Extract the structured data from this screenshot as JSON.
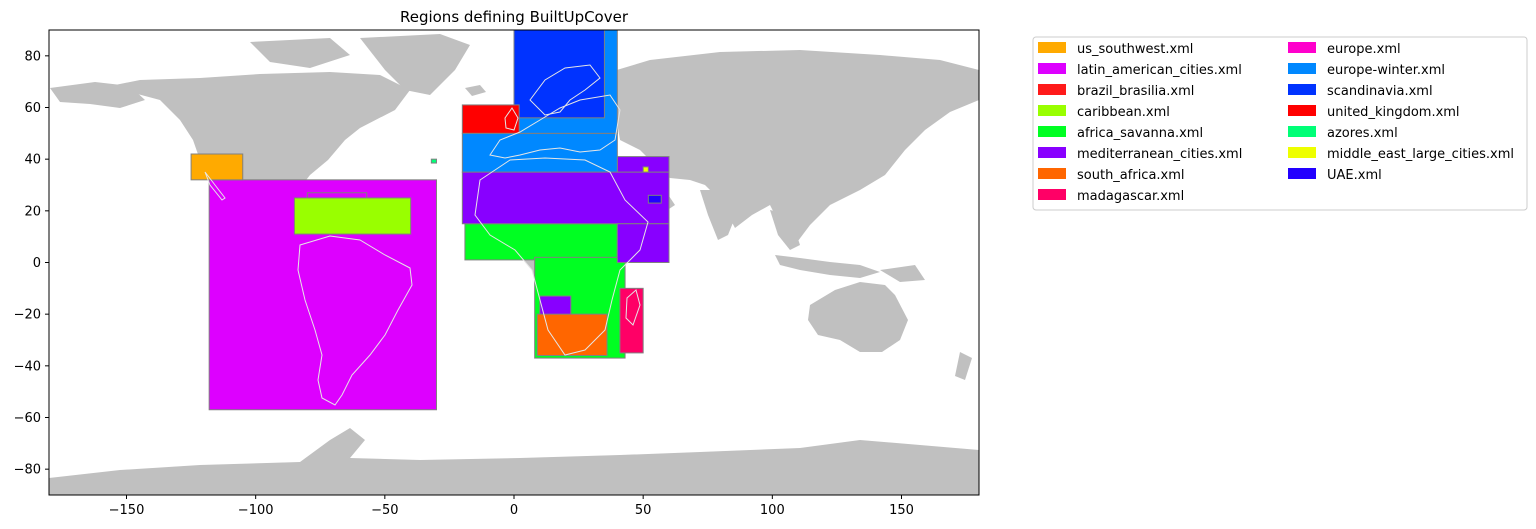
{
  "title": "Regions defining BuiltUpCover",
  "map": {
    "projection": "plate carrée (lon/lat)",
    "xlim": [
      -180,
      180
    ],
    "ylim": [
      -90,
      90
    ],
    "xticks": [
      -150,
      -100,
      -50,
      0,
      50,
      100,
      150
    ],
    "yticks": [
      80,
      60,
      40,
      20,
      0,
      -20,
      -40,
      -60,
      -80
    ],
    "land_color": "#c0c0c0",
    "border_color": "#e6e6e6",
    "region_edge_color": "#808080"
  },
  "legend": {
    "placement": "outside right, top",
    "columns": 2,
    "entries": [
      {
        "label": "us_southwest.xml",
        "color": "#ffaa00"
      },
      {
        "label": "latin_american_cities.xml",
        "color": "#dd00ff"
      },
      {
        "label": "brazil_brasilia.xml",
        "color": "#ff1a1a"
      },
      {
        "label": "caribbean.xml",
        "color": "#99ff00"
      },
      {
        "label": "africa_savanna.xml",
        "color": "#00ff22"
      },
      {
        "label": "mediterranean_cities.xml",
        "color": "#8800ff"
      },
      {
        "label": "south_africa.xml",
        "color": "#ff6600"
      },
      {
        "label": "madagascar.xml",
        "color": "#ff0066"
      },
      {
        "label": "europe.xml",
        "color": "#ff00cc"
      },
      {
        "label": "europe-winter.xml",
        "color": "#0088ff"
      },
      {
        "label": "scandinavia.xml",
        "color": "#0033ff"
      },
      {
        "label": "united_kingdom.xml",
        "color": "#ff0000"
      },
      {
        "label": "azores.xml",
        "color": "#00ff77"
      },
      {
        "label": "middle_east_large_cities.xml",
        "color": "#eeff00"
      },
      {
        "label": "UAE.xml",
        "color": "#2200ff"
      }
    ]
  },
  "regions": [
    {
      "file": "latin_american_cities.xml",
      "lon": [
        -118,
        -30
      ],
      "lat": [
        -57,
        32
      ],
      "color": "#dd00ff"
    },
    {
      "file": "latin_american_cities.xml",
      "lon": [
        -80,
        -57
      ],
      "lat": [
        24,
        27
      ],
      "color": "#dd00ff"
    },
    {
      "file": "caribbean.xml",
      "lon": [
        -85,
        -40
      ],
      "lat": [
        11,
        25
      ],
      "color": "#99ff00"
    },
    {
      "file": "us_southwest.xml",
      "lon": [
        -125,
        -105
      ],
      "lat": [
        32,
        42
      ],
      "color": "#ffaa00"
    },
    {
      "file": "africa_savanna.xml",
      "lon": [
        -19,
        40
      ],
      "lat": [
        1,
        15
      ],
      "color": "#00ff22"
    },
    {
      "file": "africa_savanna.xml",
      "lon": [
        8,
        43
      ],
      "lat": [
        -37,
        2
      ],
      "color": "#00ff22"
    },
    {
      "file": "mediterranean_cities.xml",
      "lon": [
        -20,
        60
      ],
      "lat": [
        15,
        35
      ],
      "color": "#8800ff"
    },
    {
      "file": "mediterranean_cities.xml",
      "lon": [
        40,
        60
      ],
      "lat": [
        35,
        41
      ],
      "color": "#8800ff"
    },
    {
      "file": "mediterranean_cities.xml",
      "lon": [
        40,
        60
      ],
      "lat": [
        0,
        15
      ],
      "color": "#8800ff"
    },
    {
      "file": "mediterranean_cities.xml",
      "lon": [
        10,
        22
      ],
      "lat": [
        -22,
        -13
      ],
      "color": "#8800ff"
    },
    {
      "file": "south_africa.xml",
      "lon": [
        9,
        36
      ],
      "lat": [
        -36,
        -20
      ],
      "color": "#ff6600"
    },
    {
      "file": "madagascar.xml",
      "lon": [
        41,
        50
      ],
      "lat": [
        -35,
        -10
      ],
      "color": "#ff0066"
    },
    {
      "file": "europe-winter.xml",
      "lon": [
        -20,
        40
      ],
      "lat": [
        35,
        50
      ],
      "color": "#0088ff"
    },
    {
      "file": "europe-winter.xml",
      "lon": [
        1,
        40
      ],
      "lat": [
        50,
        90
      ],
      "color": "#0088ff"
    },
    {
      "file": "scandinavia.xml",
      "lon": [
        0,
        35
      ],
      "lat": [
        56,
        90
      ],
      "color": "#0033ff"
    },
    {
      "file": "united_kingdom.xml",
      "lon": [
        -20,
        2
      ],
      "lat": [
        50,
        61
      ],
      "color": "#ff0000"
    },
    {
      "file": "azores.xml",
      "lon": [
        -32,
        -30
      ],
      "lat": [
        38.5,
        40
      ],
      "color": "#00ff77"
    },
    {
      "file": "middle_east_large_cities.xml",
      "lon": [
        50,
        52
      ],
      "lat": [
        35,
        37
      ],
      "color": "#eeff00"
    },
    {
      "file": "UAE.xml",
      "lon": [
        52,
        57
      ],
      "lat": [
        23,
        26
      ],
      "color": "#2200ff"
    }
  ]
}
